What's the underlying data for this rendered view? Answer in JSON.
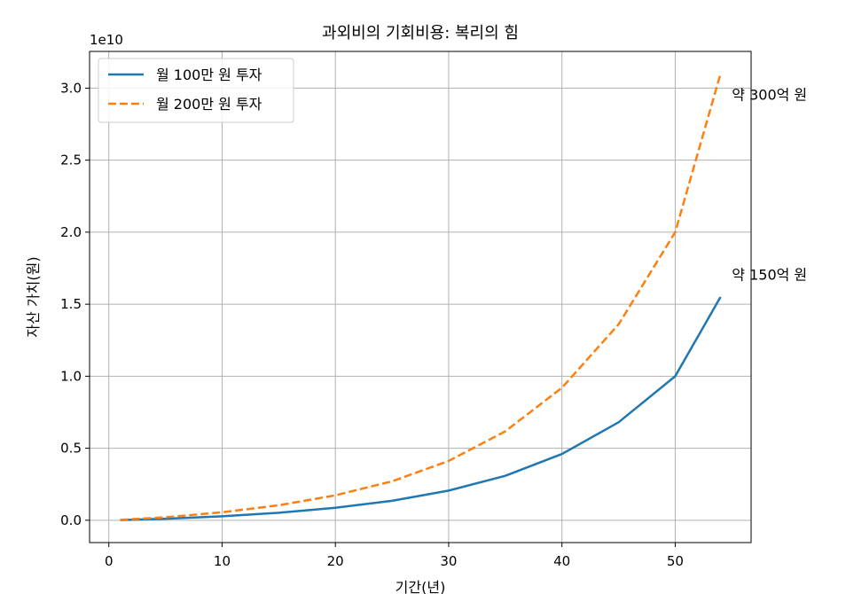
{
  "chart_data": {
    "type": "line",
    "title": "과외비의 기회비용: 복리의 힘",
    "xlabel": "기간(년)",
    "ylabel": "자산 가치(원)",
    "offset_text": "1e10",
    "xlim": [
      -1.7,
      56.7
    ],
    "ylim": [
      -0.155,
      3.255
    ],
    "y_scale_factor": 10000000000,
    "xticks": [
      0,
      10,
      20,
      30,
      40,
      50
    ],
    "xtick_labels": [
      "0",
      "10",
      "20",
      "30",
      "40",
      "50"
    ],
    "yticks": [
      0.0,
      0.5,
      1.0,
      1.5,
      2.0,
      2.5,
      3.0
    ],
    "ytick_labels": [
      "0.0",
      "0.5",
      "1.0",
      "1.5",
      "2.0",
      "2.5",
      "3.0"
    ],
    "grid": true,
    "legend_position": "upper-left",
    "series": [
      {
        "name": "월 100만 원 투자",
        "color": "#1f77b4",
        "dash": "solid",
        "x": [
          1,
          5,
          10,
          15,
          20,
          25,
          30,
          35,
          40,
          45,
          50,
          54
        ],
        "y": [
          0.0013,
          0.0103,
          0.0277,
          0.0519,
          0.0866,
          0.1352,
          0.2058,
          0.3088,
          0.46,
          0.68,
          1.0,
          1.55
        ]
      },
      {
        "name": "월 200만 원 투자",
        "color": "#ff7f0e",
        "dash": "dashed",
        "x": [
          1,
          5,
          10,
          15,
          20,
          25,
          30,
          35,
          40,
          45,
          50,
          54
        ],
        "y": [
          0.0026,
          0.0206,
          0.0554,
          0.1038,
          0.1732,
          0.2704,
          0.4116,
          0.6176,
          0.92,
          1.36,
          2.0,
          3.1
        ]
      }
    ],
    "annotations": [
      {
        "text": "약 300억 원",
        "x": 55,
        "y": 2.95
      },
      {
        "text": "약 150억 원",
        "x": 55,
        "y": 1.7
      }
    ]
  }
}
